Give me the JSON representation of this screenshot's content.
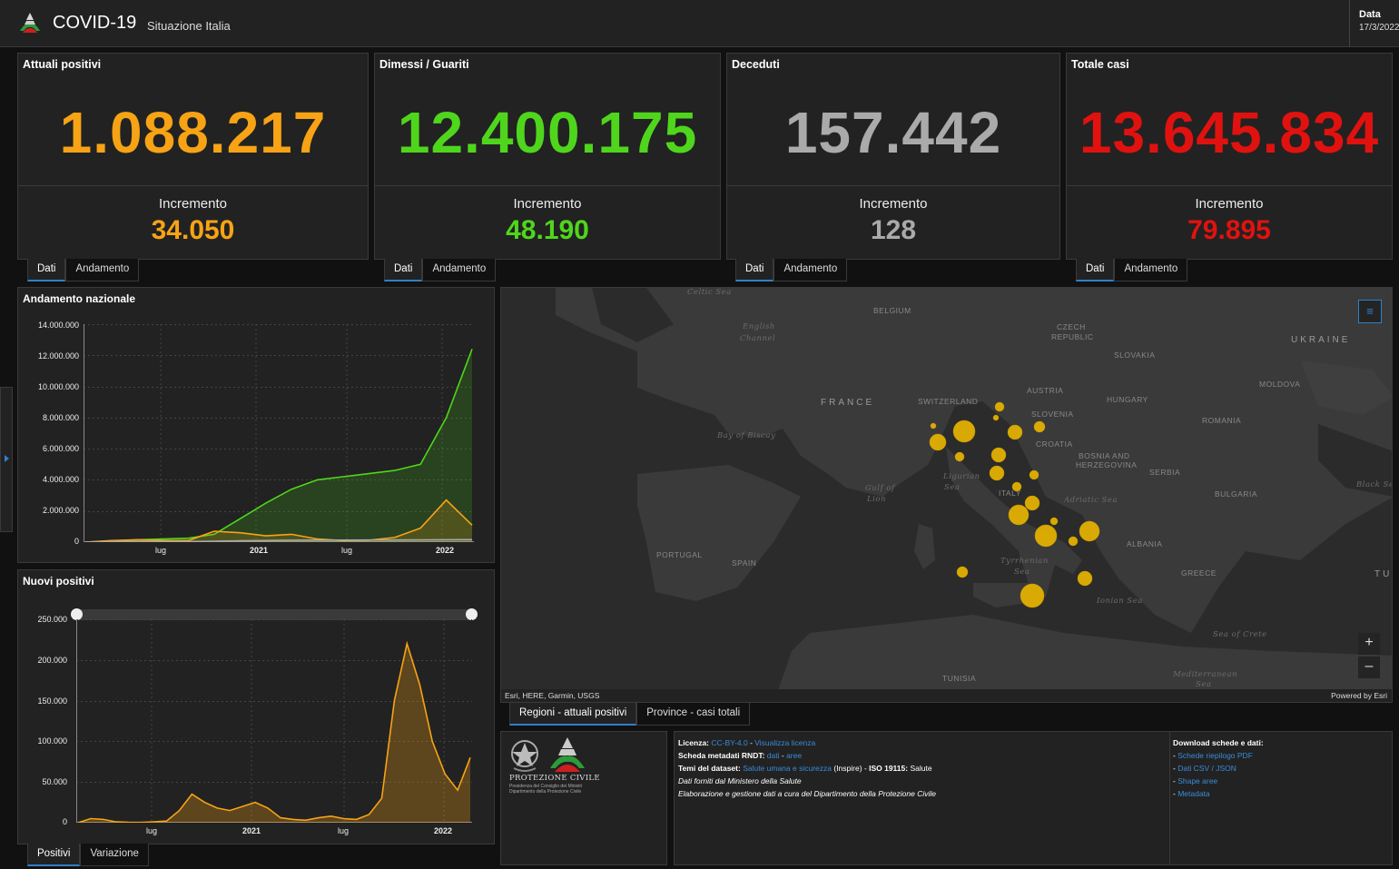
{
  "header": {
    "title": "COVID-19",
    "subtitle": "Situazione Italia",
    "date_label": "Data",
    "date_value": "17/3/2022"
  },
  "colors": {
    "orange": "#f7a315",
    "green": "#4fd61c",
    "gray": "#aaaaaa",
    "red": "#e0120f",
    "accent": "#2f80c8",
    "bubble": "#e8b400"
  },
  "kpis": [
    {
      "title": "Attuali positivi",
      "value": "1.088.217",
      "inc_label": "Incremento",
      "inc_value": "34.050"
    },
    {
      "title": "Dimessi / Guariti",
      "value": "12.400.175",
      "inc_label": "Incremento",
      "inc_value": "48.190"
    },
    {
      "title": "Deceduti",
      "value": "157.442",
      "inc_label": "Incremento",
      "inc_value": "128"
    },
    {
      "title": "Totale casi",
      "value": "13.645.834",
      "inc_label": "Incremento",
      "inc_value": "79.895"
    }
  ],
  "kpi_tabs": {
    "dati": "Dati",
    "andamento": "Andamento"
  },
  "trend_chart": {
    "title": "Andamento nazionale",
    "yticks": [
      "14.000.000",
      "12.000.000",
      "10.000.000",
      "8.000.000",
      "6.000.000",
      "4.000.000",
      "2.000.000",
      "0"
    ],
    "xticks": [
      "lug",
      "2021",
      "lug",
      "2022"
    ]
  },
  "new_chart": {
    "title": "Nuovi positivi",
    "yticks": [
      "250.000",
      "200.000",
      "150.000",
      "100.000",
      "50.000",
      "0"
    ],
    "xticks": [
      "lug",
      "2021",
      "lug",
      "2022"
    ],
    "tabs": [
      "Positivi",
      "Variazione"
    ]
  },
  "chart_data": [
    {
      "type": "area",
      "title": "Andamento nazionale",
      "ylim": [
        0,
        14000000
      ],
      "x_axis_labels": [
        "lug",
        "2021",
        "lug",
        "2022"
      ],
      "series": [
        {
          "color": "#4fd61c",
          "values": [
            0,
            50000,
            150000,
            200000,
            250000,
            500000,
            1500000,
            2500000,
            3400000,
            4000000,
            4200000,
            4400000,
            4600000,
            5000000,
            8000000,
            12400175
          ]
        },
        {
          "color": "#f7a315",
          "values": [
            0,
            100000,
            150000,
            100000,
            100000,
            700000,
            600000,
            400000,
            500000,
            200000,
            100000,
            120000,
            300000,
            900000,
            2700000,
            1088217
          ]
        },
        {
          "color": "#aaaaaa",
          "values": [
            0,
            30000,
            35000,
            36000,
            37000,
            60000,
            80000,
            100000,
            120000,
            127000,
            130000,
            132000,
            135000,
            140000,
            150000,
            157442
          ]
        }
      ]
    },
    {
      "type": "area",
      "title": "Nuovi positivi",
      "ylim": [
        0,
        250000
      ],
      "x_axis_labels": [
        "lug",
        "2021",
        "lug",
        "2022"
      ],
      "series": [
        {
          "color": "#f7a315",
          "values": [
            0,
            5000,
            4000,
            1000,
            500,
            300,
            1000,
            2000,
            15000,
            35000,
            25000,
            18000,
            15000,
            20000,
            25000,
            18000,
            6000,
            4000,
            3000,
            6000,
            8000,
            5000,
            4000,
            10000,
            30000,
            150000,
            220000,
            170000,
            100000,
            60000,
            40000,
            80000
          ]
        }
      ]
    }
  ],
  "map": {
    "attribution": "Esri, HERE, Garmin, USGS",
    "powered_by": "Powered by Esri",
    "labels": {
      "celtic": "Celtic Sea",
      "english": "English",
      "channel": "Channel",
      "belgium": "BELGIUM",
      "czech": "CZECH",
      "republic": "REPUBLIC",
      "ukraine": "UKRAINE",
      "slovakia": "SLOVAKIA",
      "france": "FRANCE",
      "switzerland": "SWITZERLAND",
      "austria": "AUSTRIA",
      "hungary": "HUNGARY",
      "moldova": "MOLDOVA",
      "slovenia": "SLOVENIA",
      "romania": "ROMANIA",
      "croatia": "CROATIA",
      "biscay": "Bay of Biscay",
      "bosnia": "BOSNIA AND",
      "herzegovina": "HERZEGOVINA",
      "serbia": "SERBIA",
      "ligurian": "Ligurian",
      "sea1": "Sea",
      "gulf": "Gulf of",
      "lion": "Lion",
      "italy": "ITALY",
      "adriatic": "Adriatic Sea",
      "bulgaria": "BULGARIA",
      "blacksea": "Black Se",
      "portugal": "PORTUGAL",
      "spain": "SPAIN",
      "albania": "ALBANIA",
      "tyrrhenian": "Tyrrhenian",
      "sea2": "Sea",
      "greece": "GREECE",
      "tu": "TU",
      "ionian": "Ionian Sea",
      "crete": "Sea of Crete",
      "tunisia": "TUNISIA",
      "medit": "Mediterranean",
      "sea3": "Sea"
    },
    "tabs": [
      "Regioni - attuali positivi",
      "Province - casi totali"
    ]
  },
  "footer": {
    "logo_caption": "PROTEZIONE CIVILE",
    "logo_sub1": "Presidenza del Consiglio dei Ministri",
    "logo_sub2": "Dipartimento della Protezione Civile",
    "licenza_label": "Licenza:",
    "licenza_link1": "CC-BY-4.0",
    "sep": " - ",
    "licenza_link2": "Visualizza licenza",
    "scheda_label": "Scheda metadati RNDT:",
    "scheda_link1": "dati",
    "scheda_link2": "aree",
    "temi_label": "Temi del dataset:",
    "temi_link": "Salute umana e sicurezza",
    "temi_rest": " (Inspire) - ",
    "iso_label": "ISO 19115:",
    "iso_value": " Salute",
    "line4": "Dati forniti dal Ministero della Salute",
    "line5": "Elaborazione e gestione dati a cura del Dipartimento della Protezione Civile",
    "download_title": "Download schede e dati:",
    "dash": "- ",
    "downloads": [
      "Schede riepilogo PDF",
      "Dati CSV / JSON",
      "Shape aree",
      "Metadata"
    ]
  }
}
